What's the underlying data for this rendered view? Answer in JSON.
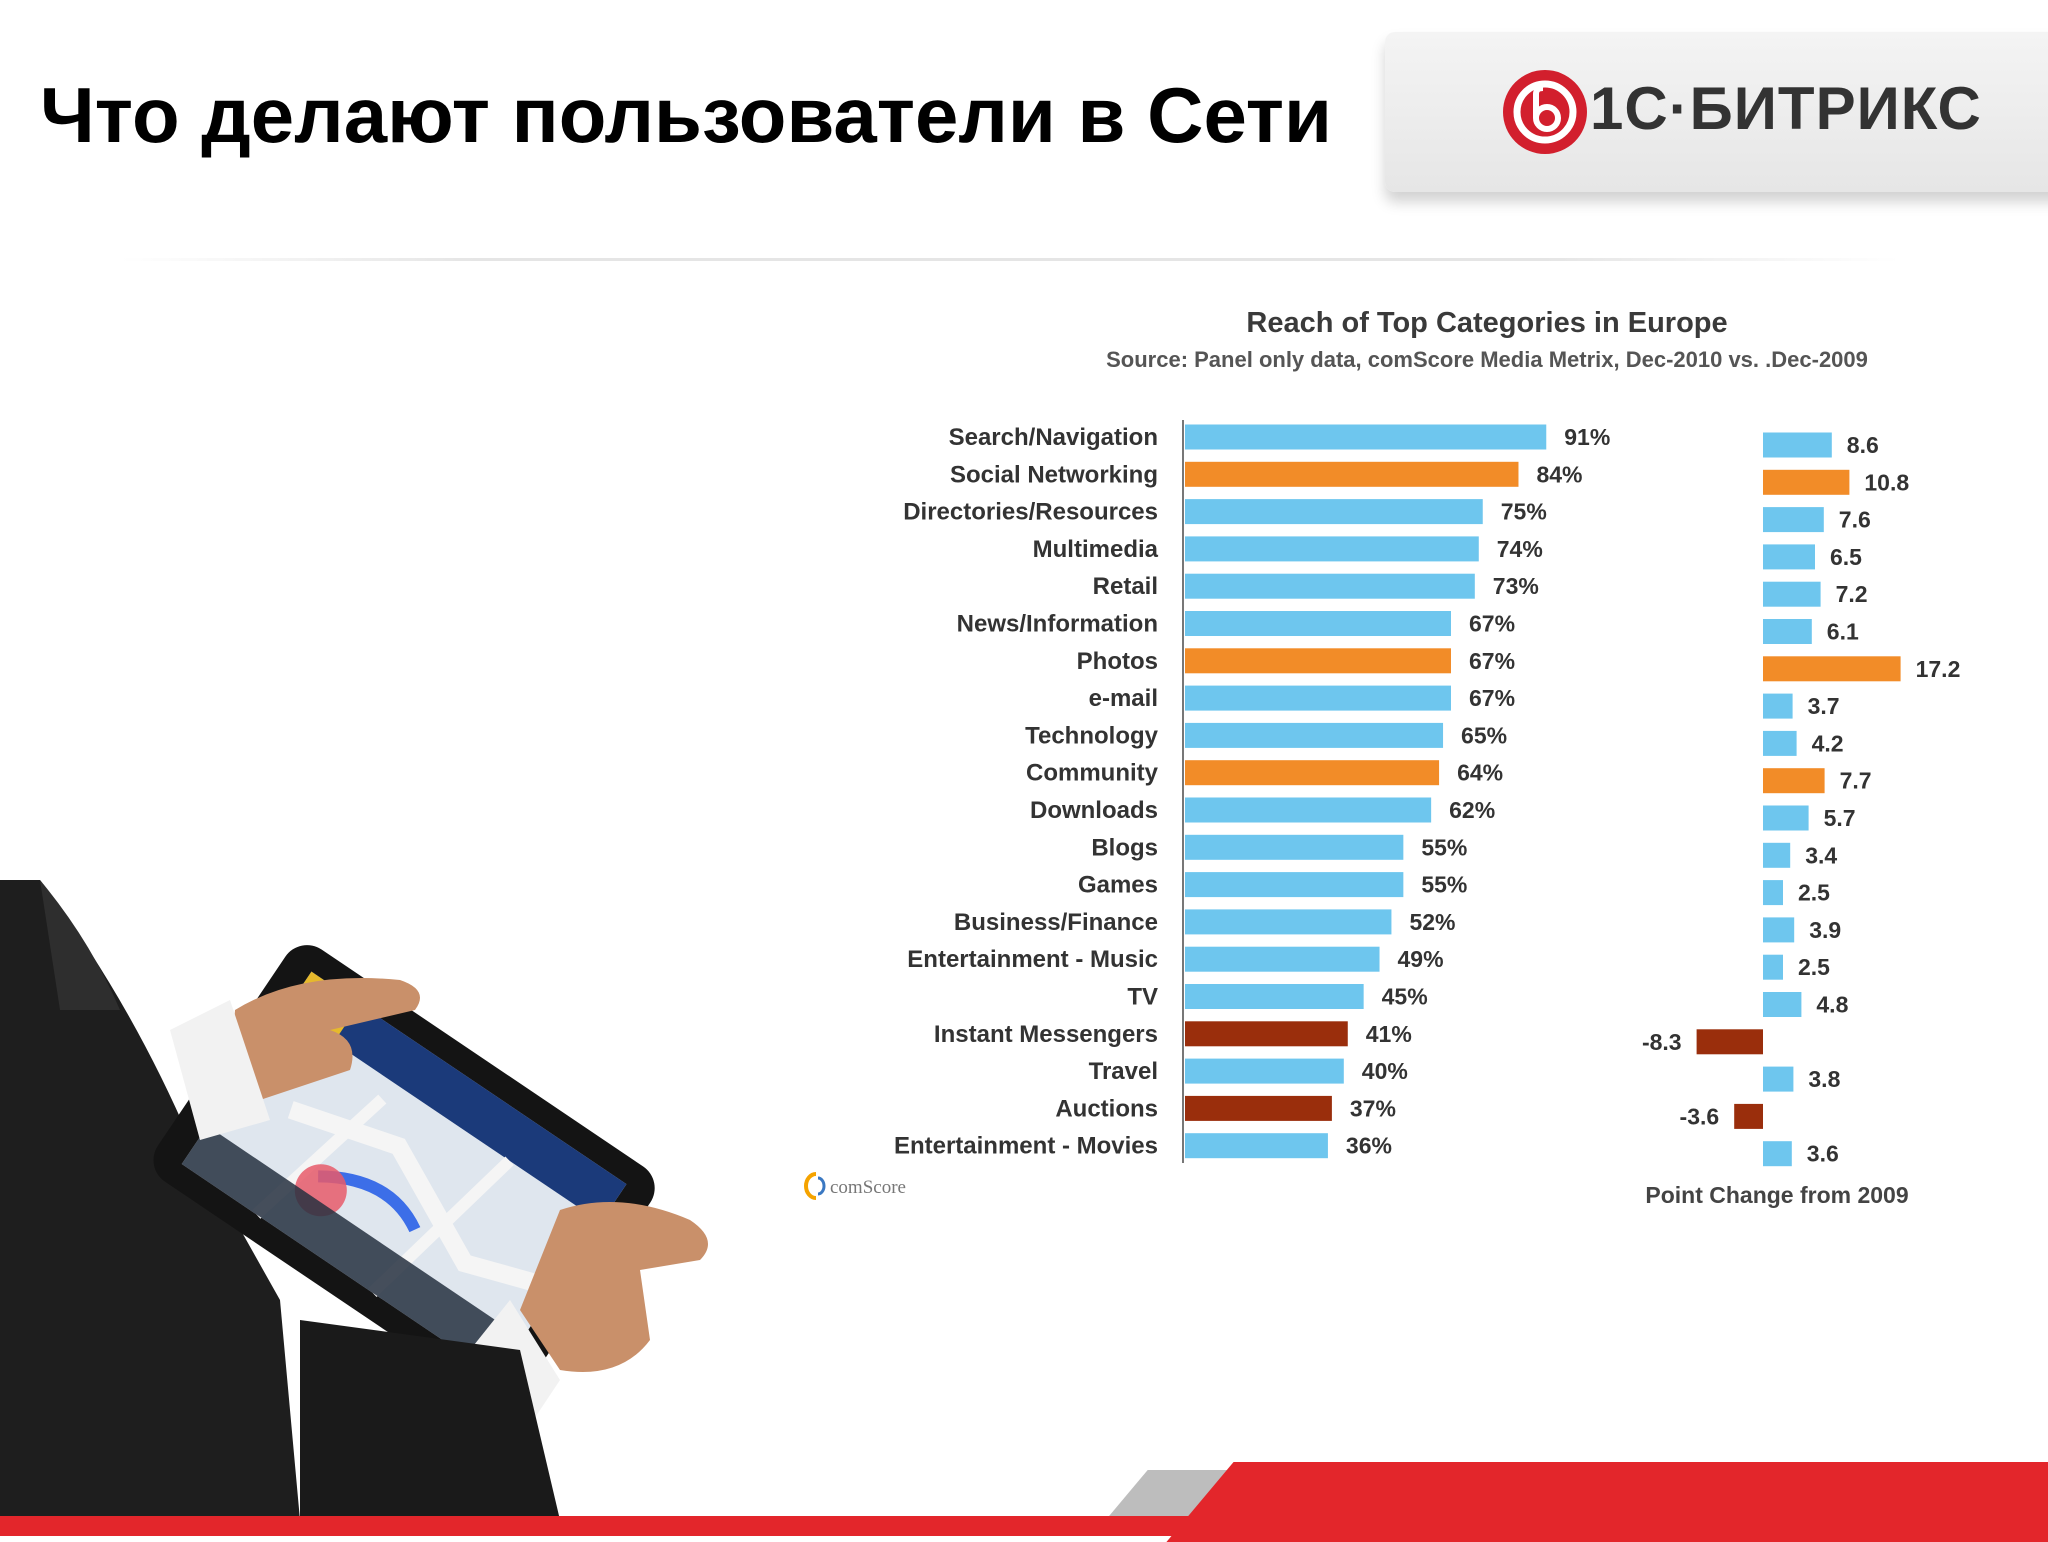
{
  "slide": {
    "title": "Что делают пользователи в Сети",
    "logo_text": "1С·БИТРИКС"
  },
  "colors": {
    "light_blue": "#6ec6ee",
    "orange": "#f28c28",
    "dark_red": "#9a2e0c",
    "brand_red": "#e3262b"
  },
  "chart_data": {
    "type": "bar",
    "orientation": "horizontal",
    "title": "Reach of Top Categories in Europe",
    "subtitle": "Source: Panel only data, comScore Media Metrix, Dec-2010 vs. .Dec-2009",
    "source_logo": "comScore",
    "categories": [
      "Search/Navigation",
      "Social Networking",
      "Directories/Resources",
      "Multimedia",
      "Retail",
      "News/Information",
      "Photos",
      "e-mail",
      "Technology",
      "Community",
      "Downloads",
      "Blogs",
      "Games",
      "Business/Finance",
      "Entertainment - Music",
      "TV",
      "Instant Messengers",
      "Travel",
      "Auctions",
      "Entertainment - Movies"
    ],
    "series": [
      {
        "values": [
          91,
          84,
          75,
          74,
          73,
          67,
          67,
          67,
          65,
          64,
          62,
          55,
          55,
          52,
          49,
          45,
          41,
          40,
          37,
          36
        ],
        "labels": [
          "91%",
          "84%",
          "75%",
          "74%",
          "73%",
          "67%",
          "67%",
          "67%",
          "65%",
          "64%",
          "62%",
          "55%",
          "55%",
          "52%",
          "49%",
          "45%",
          "41%",
          "40%",
          "37%",
          "36%"
        ],
        "colors": [
          "light_blue",
          "orange",
          "light_blue",
          "light_blue",
          "light_blue",
          "light_blue",
          "orange",
          "light_blue",
          "light_blue",
          "orange",
          "light_blue",
          "light_blue",
          "light_blue",
          "light_blue",
          "light_blue",
          "light_blue",
          "dark_red",
          "light_blue",
          "dark_red",
          "light_blue"
        ]
      },
      {
        "name": "Point Change from 2009",
        "values": [
          8.6,
          10.8,
          7.6,
          6.5,
          7.2,
          6.1,
          17.2,
          3.7,
          4.2,
          7.7,
          5.7,
          3.4,
          2.5,
          3.9,
          2.5,
          4.8,
          -8.3,
          3.8,
          -3.6,
          3.6
        ],
        "labels": [
          "8.6",
          "10.8",
          "7.6",
          "6.5",
          "7.2",
          "6.1",
          "17.2",
          "3.7",
          "4.2",
          "7.7",
          "5.7",
          "3.4",
          "2.5",
          "3.9",
          "2.5",
          "4.8",
          "-8.3",
          "3.8",
          "-3.6",
          "3.6"
        ],
        "colors": [
          "light_blue",
          "orange",
          "light_blue",
          "light_blue",
          "light_blue",
          "light_blue",
          "orange",
          "light_blue",
          "light_blue",
          "orange",
          "light_blue",
          "light_blue",
          "light_blue",
          "light_blue",
          "light_blue",
          "light_blue",
          "dark_red",
          "light_blue",
          "dark_red",
          "light_blue"
        ]
      }
    ]
  }
}
